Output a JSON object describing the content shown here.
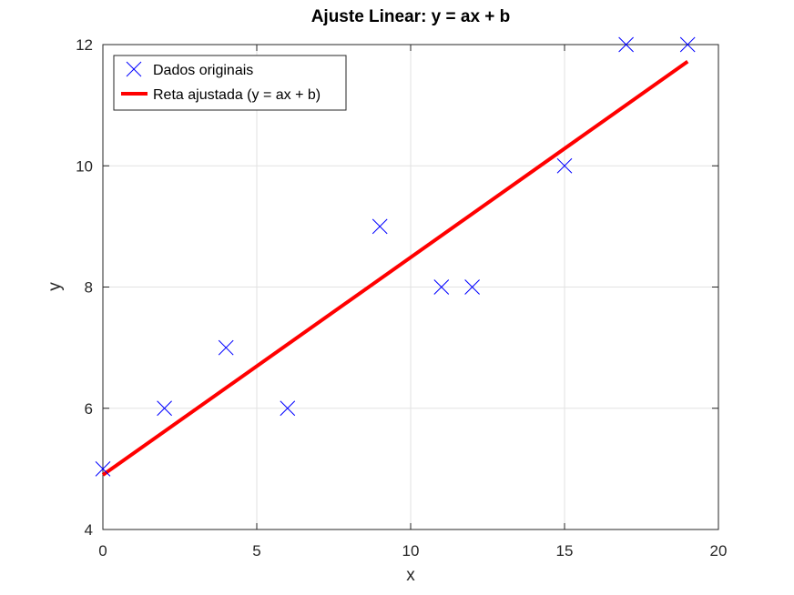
{
  "chart_data": {
    "type": "scatter",
    "title": "Ajuste Linear: y = ax + b",
    "xlabel": "x",
    "ylabel": "y",
    "xlim": [
      0,
      20
    ],
    "ylim": [
      4,
      12
    ],
    "xticks": [
      0,
      5,
      10,
      15,
      20
    ],
    "yticks": [
      4,
      6,
      8,
      10,
      12
    ],
    "grid": true,
    "legend_position": "top-left",
    "series": [
      {
        "name": "Dados originais",
        "kind": "scatter",
        "marker": "x",
        "color": "#0000ff",
        "x": [
          0,
          2,
          4,
          6,
          9,
          11,
          12,
          15,
          17,
          19
        ],
        "y": [
          5,
          6,
          7,
          6,
          9,
          8,
          8,
          10,
          12,
          12
        ]
      },
      {
        "name": "Reta ajustada (y = ax + b)",
        "kind": "line",
        "color": "#ff0000",
        "x": [
          0,
          19
        ],
        "y": [
          4.9,
          11.72
        ]
      }
    ]
  }
}
